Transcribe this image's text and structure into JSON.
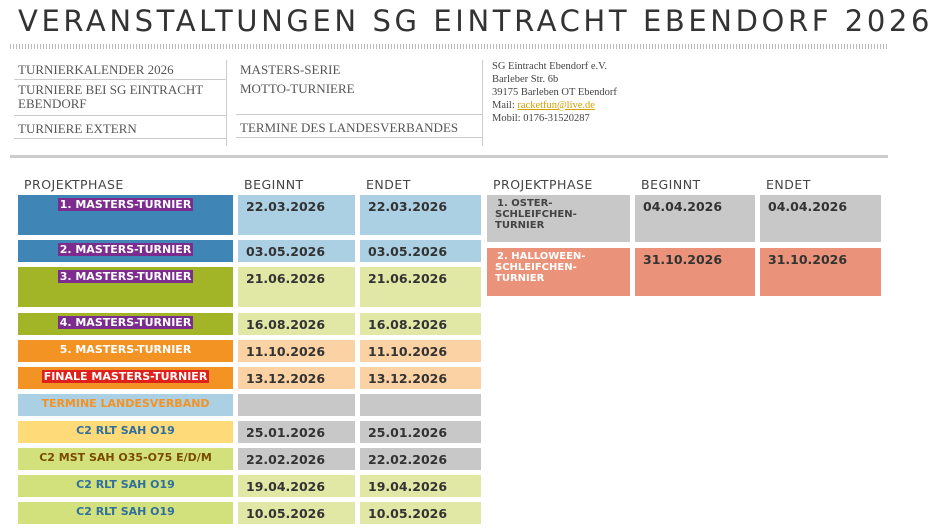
{
  "header": {
    "title": "VERANSTALTUNGEN SG EINTRACHT EBENDORF 2026"
  },
  "nav": {
    "column1": [
      "TURNIERKALENDER 2026",
      "TURNIERE BEI SG EINTRACHT EBENDORF",
      "TURNIERE EXTERN"
    ],
    "column2": [
      "MASTERS-SERIE",
      "MOTTO-TURNIERE",
      "TERMINE DES LANDESVERBANDES"
    ]
  },
  "contact": {
    "name": "SG Eintracht Ebendorf e.V.",
    "street": "Barleber Str. 6b",
    "city": "39175 Barleben OT Ebendorf",
    "mail_label": "Mail:",
    "mail": "racketfun@live.de",
    "phone": "Mobil: 0176-31520287"
  },
  "table_left": {
    "headers": [
      "PROJEKTPHASE",
      "BEGINNT",
      "ENDET"
    ],
    "rows": [
      [
        "1.  MASTERS-TURNIER",
        "22.03.2026",
        "22.03.2026"
      ],
      [
        "2. MASTERS-TURNIER",
        "03.05.2026",
        "03.05.2026"
      ],
      [
        "3. MASTERS-TURNIER",
        "21.06.2026",
        "21.06.2026"
      ],
      [
        "4. MASTERS-TURNIER",
        "16.08.2026",
        "16.08.2026"
      ],
      [
        "5. MASTERS-TURNIER",
        "11.10.2026",
        "11.10.2026"
      ],
      [
        "FINALE MASTERS-TURNIER",
        "13.12.2026",
        "13.12.2026"
      ],
      [
        "TERMINE LANDESVERBAND",
        null,
        null
      ],
      [
        "C2 RLT SAH O19",
        "25.01.2026",
        "25.01.2026"
      ],
      [
        "C2 MST SAH O35-O75 E/D/M",
        "22.02.2026",
        "22.02.2026"
      ],
      [
        "C2 RLT SAH O19",
        "19.04.2026",
        "19.04.2026"
      ],
      [
        "C2 RLT SAH O19",
        "10.05.2026",
        "10.05.2026"
      ]
    ]
  },
  "table_right": {
    "headers": [
      "PROJEKTPHASE",
      "BEGINNT",
      "ENDET"
    ],
    "rows": [
      [
        "1.  OSTER-SCHLEIFCHEN-TURNIER",
        "04.04.2026",
        "04.04.2026"
      ],
      [
        "2.  HALLOWEEN-SCHLEIFCHEN-TURNIER",
        "31.10.2026",
        "31.10.2026"
      ]
    ]
  }
}
